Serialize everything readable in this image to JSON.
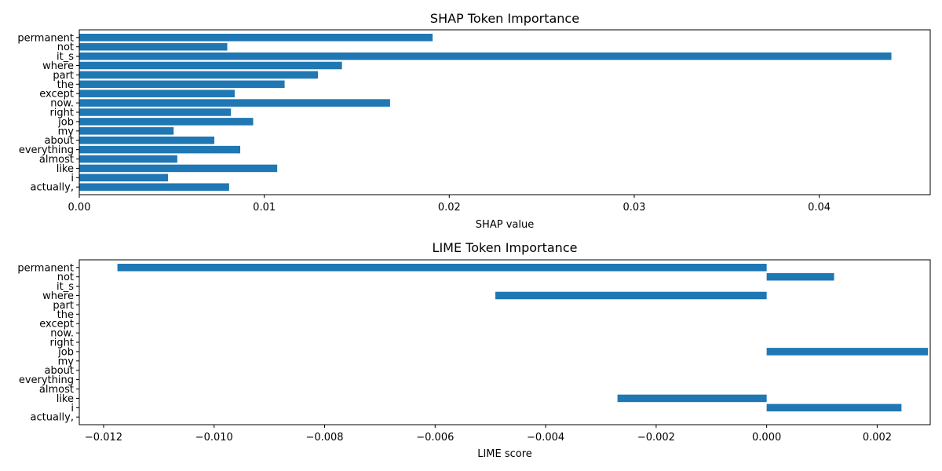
{
  "chart_data": [
    {
      "type": "bar",
      "orientation": "horizontal",
      "title": "SHAP Token Importance",
      "xlabel": "SHAP value",
      "ylabel": "",
      "xlim": [
        0,
        0.046
      ],
      "xticks": [
        0,
        0.01,
        0.02,
        0.03,
        0.04
      ],
      "xtick_labels": [
        "0.00",
        "0.01",
        "0.02",
        "0.03",
        "0.04"
      ],
      "categories": [
        "permanent",
        "not",
        "it_s",
        "where",
        "part",
        "the",
        "except",
        "now.",
        "right",
        "job",
        "my",
        "about",
        "everything",
        "almost",
        "like",
        "i",
        "actually,"
      ],
      "values": [
        0.0191,
        0.008,
        0.0439,
        0.0142,
        0.0129,
        0.0111,
        0.0084,
        0.0168,
        0.0082,
        0.0094,
        0.0051,
        0.0073,
        0.0087,
        0.0053,
        0.0107,
        0.0048,
        0.0081
      ],
      "color": "#1f77b4",
      "grid": false
    },
    {
      "type": "bar",
      "orientation": "horizontal",
      "title": "LIME Token Importance",
      "xlabel": "LIME score",
      "ylabel": "",
      "xlim": [
        -0.01244,
        0.00296
      ],
      "xticks": [
        -0.012,
        -0.01,
        -0.008,
        -0.006,
        -0.004,
        -0.002,
        0,
        0.002
      ],
      "xtick_labels": [
        "−0.012",
        "−0.010",
        "−0.008",
        "−0.006",
        "−0.004",
        "−0.002",
        "0.000",
        "0.002"
      ],
      "categories": [
        "permanent",
        "not",
        "it_s",
        "where",
        "part",
        "the",
        "except",
        "now.",
        "right",
        "job",
        "my",
        "about",
        "everything",
        "almost",
        "like",
        "i",
        "actually,"
      ],
      "values": [
        -0.01175,
        0.00122,
        0,
        -0.00491,
        0,
        0,
        0,
        0,
        0,
        0.00292,
        0,
        0,
        0,
        0,
        -0.0027,
        0.00244,
        0
      ],
      "color": "#1f77b4",
      "grid": false
    }
  ]
}
